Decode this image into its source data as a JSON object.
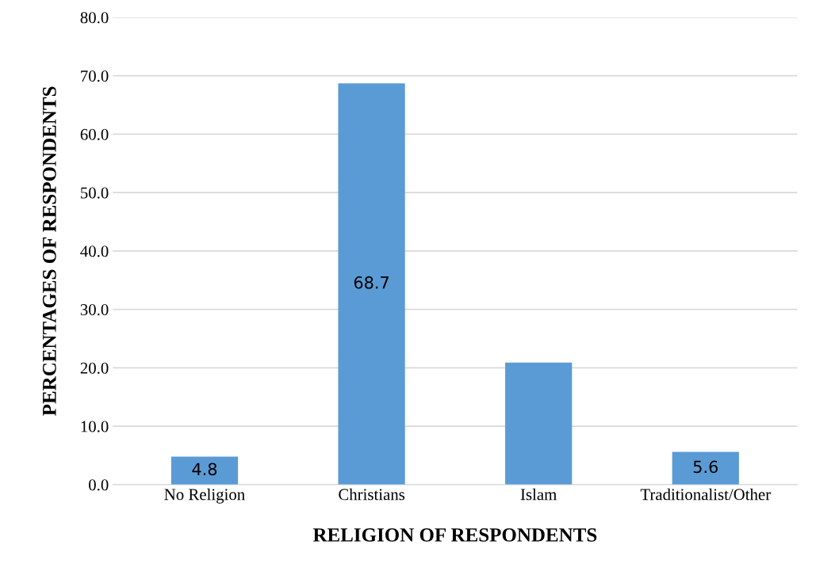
{
  "chart_data": {
    "type": "bar",
    "xlabel": "RELIGION OF RESPONDENTS",
    "ylabel": "PERCENTAGES OF RESPONDENTS",
    "categories": [
      "No Religion",
      "Christians",
      "Islam",
      "Traditionalist/Other"
    ],
    "values": [
      4.8,
      68.7,
      20.9,
      5.6
    ],
    "value_labels": [
      "4.8",
      "68.7",
      null,
      "5.6"
    ],
    "color": "#5b9bd5",
    "ylim": [
      0,
      80
    ],
    "yticks": [
      {
        "value": 0,
        "label": "0.0"
      },
      {
        "value": 10,
        "label": "10.0"
      },
      {
        "value": 20,
        "label": "20.0"
      },
      {
        "value": 30,
        "label": "30.0"
      },
      {
        "value": 40,
        "label": "40.0"
      },
      {
        "value": 50,
        "label": "50.0"
      },
      {
        "value": 60,
        "label": "60.0"
      },
      {
        "value": 70,
        "label": "70.0"
      },
      {
        "value": 80,
        "label": "80.0"
      }
    ],
    "grid": "y"
  }
}
